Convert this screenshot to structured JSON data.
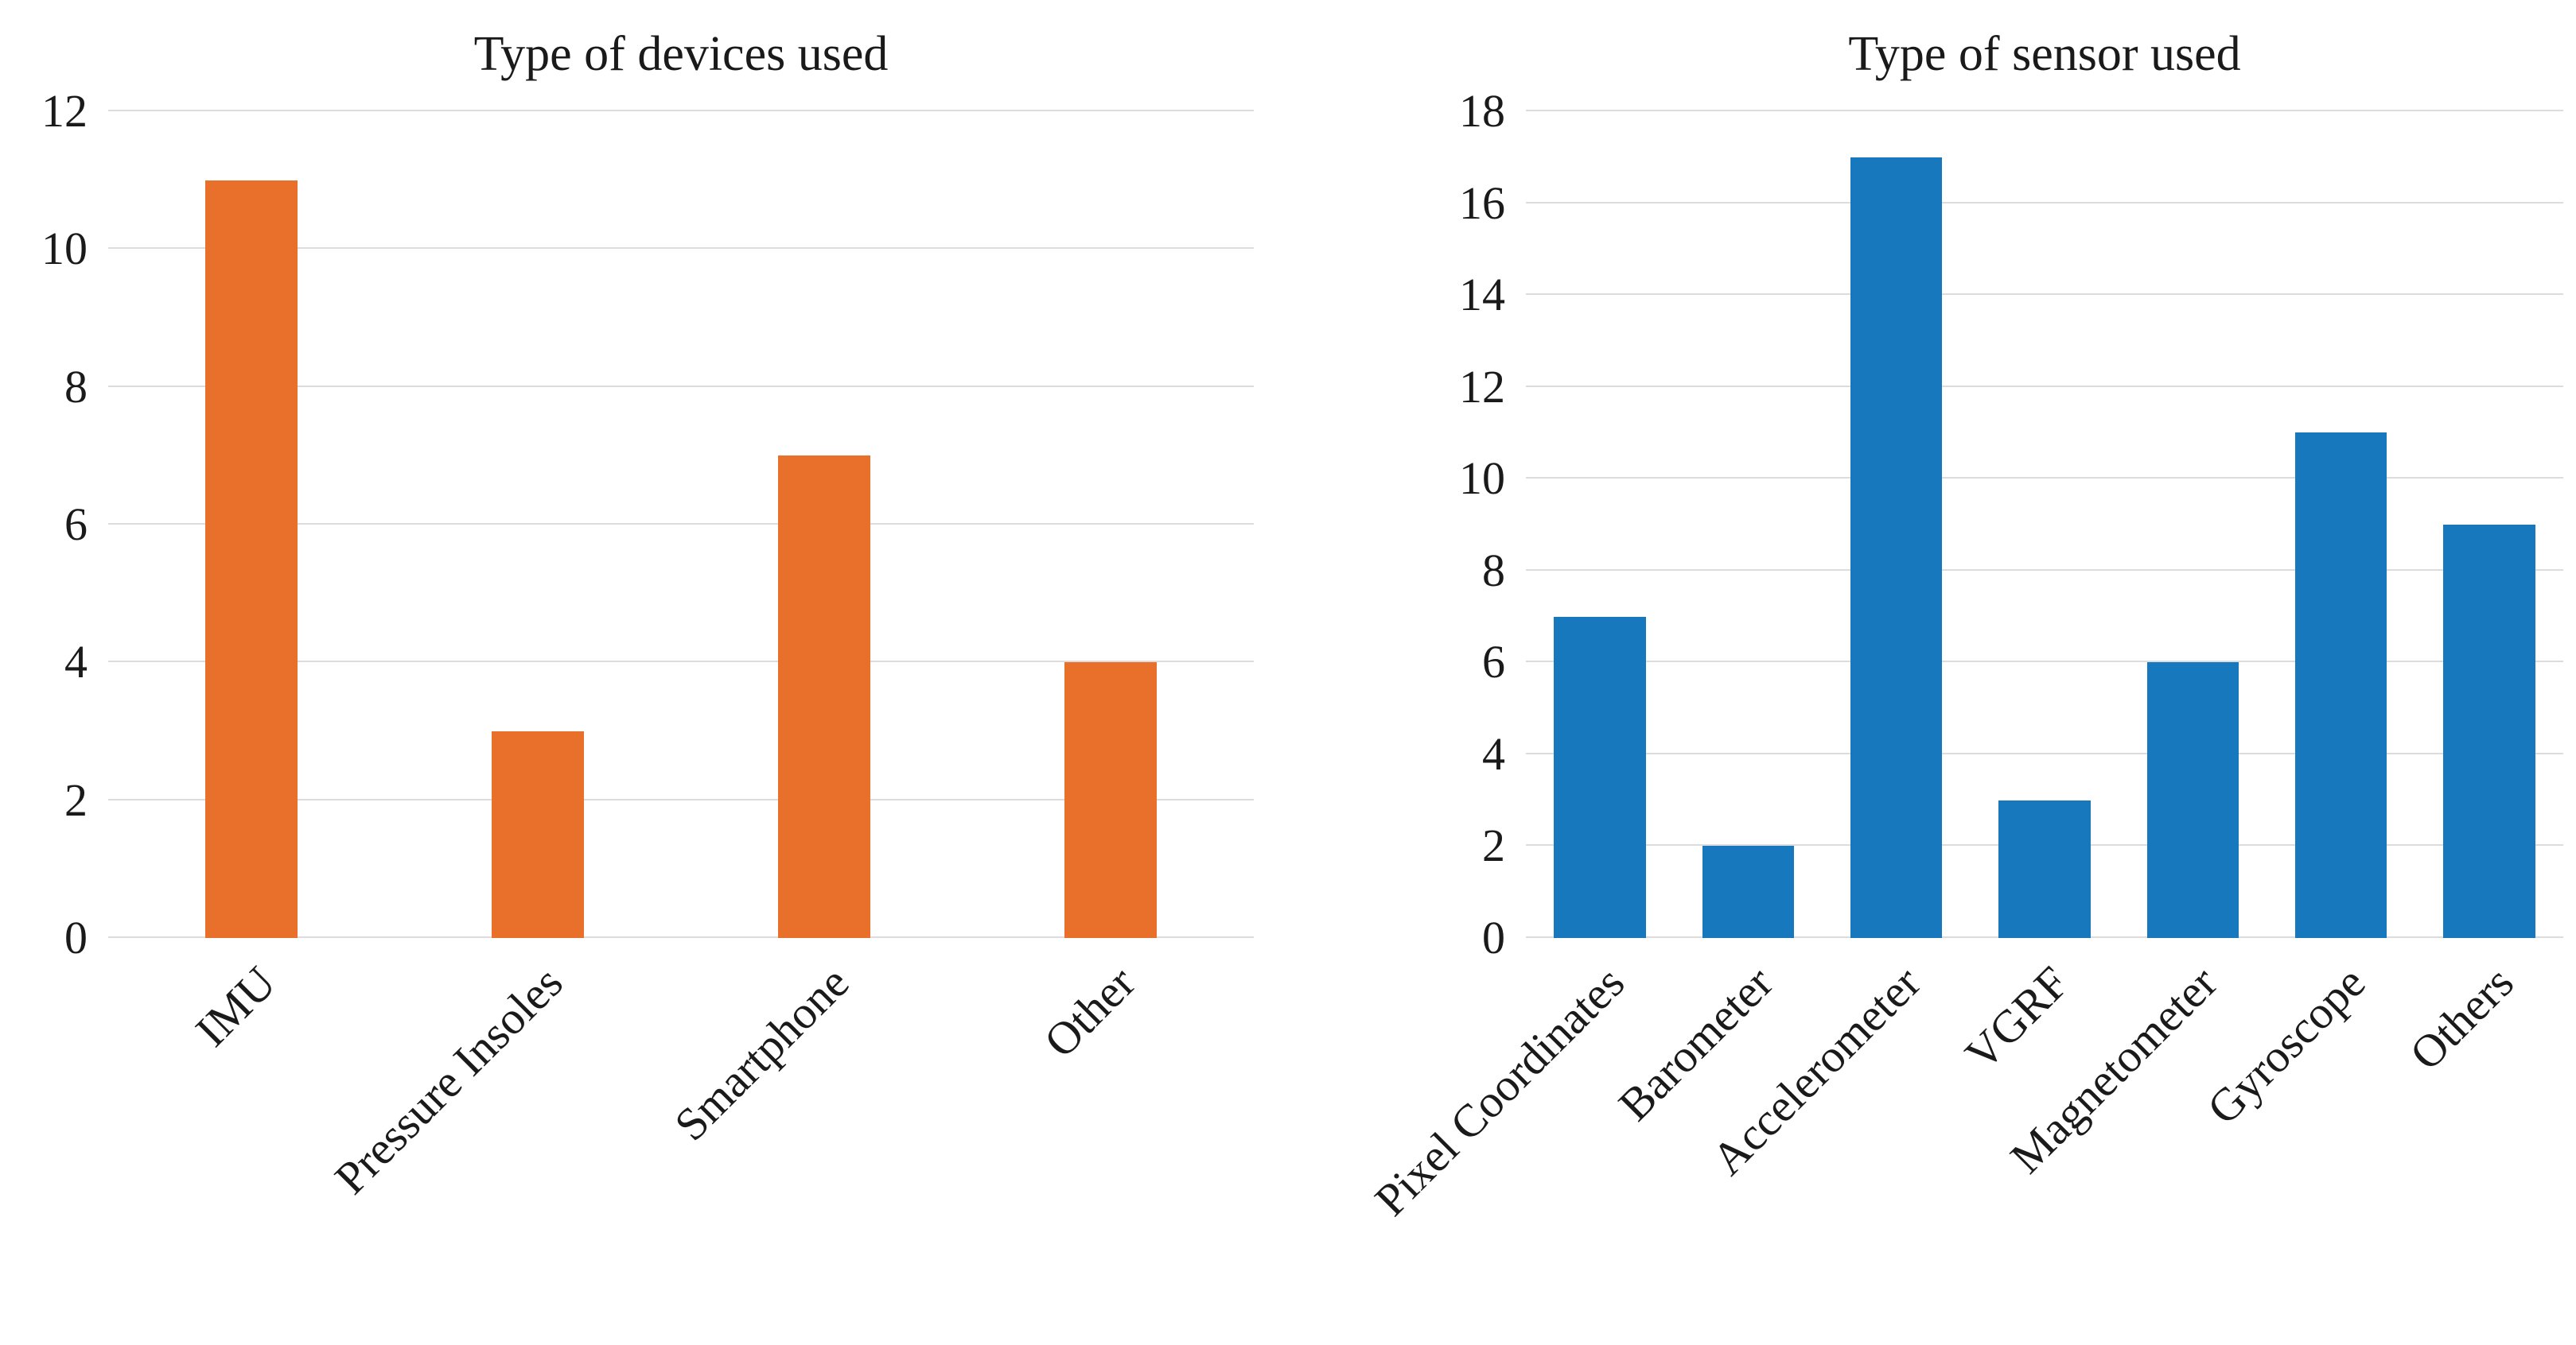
{
  "page": {
    "background": "#ffffff",
    "grid_color": "#dcdcdc",
    "text_color": "#1a1a1a"
  },
  "chart_data": [
    {
      "type": "bar",
      "title": "Type of devices used",
      "categories": [
        "IMU",
        "Pressure Insoles",
        "Smartphone",
        "Other"
      ],
      "values": [
        11,
        3,
        7,
        4
      ],
      "bar_color": "#e8702a",
      "ylim": [
        0,
        12
      ],
      "yticks": [
        0,
        2,
        4,
        6,
        8,
        10,
        12
      ],
      "xlabel": "",
      "ylabel": "",
      "grid": true,
      "legend": "none",
      "xtick_rotation": 45,
      "bar_width_frac": 0.32
    },
    {
      "type": "bar",
      "title": "Type of sensor used",
      "categories": [
        "Pixel Coordinates",
        "Barometer",
        "Accelerometer",
        "VGRF",
        "Magnetometer",
        "Gyroscope",
        "Others"
      ],
      "values": [
        7,
        2,
        17,
        3,
        6,
        11,
        9
      ],
      "bar_color": "#1778be",
      "ylim": [
        0,
        18
      ],
      "yticks": [
        0,
        2,
        4,
        6,
        8,
        10,
        12,
        14,
        16,
        18
      ],
      "xlabel": "",
      "ylabel": "",
      "grid": true,
      "legend": "none",
      "xtick_rotation": 45,
      "bar_width_frac": 0.62
    }
  ]
}
